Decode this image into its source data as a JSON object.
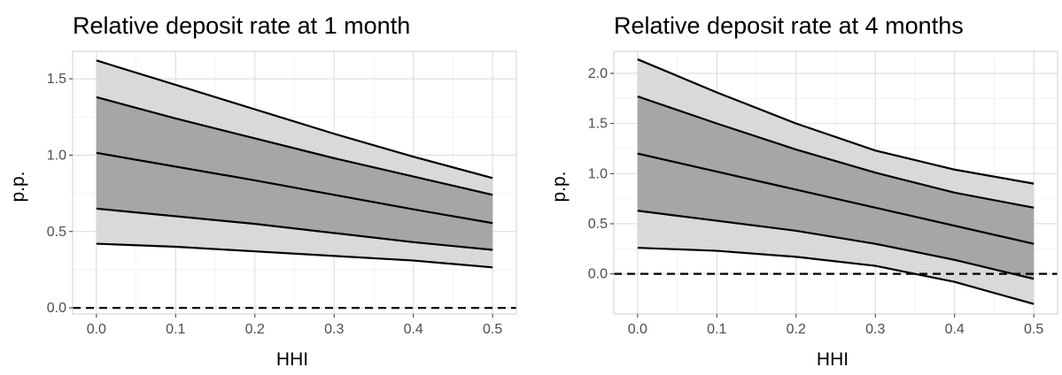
{
  "chart_data": [
    {
      "type": "area",
      "title": "Relative deposit rate at 1 month",
      "xlabel": "HHI",
      "ylabel": "p.p.",
      "x": [
        0.0,
        0.1,
        0.2,
        0.3,
        0.4,
        0.5
      ],
      "xticks": [
        "0.0",
        "0.1",
        "0.2",
        "0.3",
        "0.4",
        "0.5"
      ],
      "yticks": [
        "0.0",
        "0.5",
        "1.0",
        "1.5"
      ],
      "xlim": [
        -0.03,
        0.53
      ],
      "ylim": [
        -0.04,
        1.68
      ],
      "bands": {
        "outer": {
          "fill": "#d9d9d9",
          "lower": [
            0.42,
            0.4,
            0.37,
            0.34,
            0.31,
            0.265
          ],
          "upper": [
            1.62,
            1.46,
            1.3,
            1.14,
            0.99,
            0.85
          ]
        },
        "inner": {
          "fill": "#a6a6a6",
          "lower": [
            0.65,
            0.6,
            0.55,
            0.49,
            0.43,
            0.38
          ],
          "upper": [
            1.38,
            1.24,
            1.11,
            0.98,
            0.86,
            0.74
          ]
        }
      },
      "series": [
        {
          "values": [
            0.42,
            0.4,
            0.37,
            0.34,
            0.31,
            0.265
          ]
        },
        {
          "values": [
            0.65,
            0.6,
            0.55,
            0.49,
            0.43,
            0.38
          ]
        },
        {
          "values": [
            1.015,
            0.925,
            0.835,
            0.74,
            0.645,
            0.555
          ]
        },
        {
          "values": [
            1.38,
            1.24,
            1.11,
            0.98,
            0.86,
            0.74
          ]
        },
        {
          "values": [
            1.62,
            1.46,
            1.3,
            1.14,
            0.99,
            0.85
          ]
        }
      ],
      "reference_line": {
        "y": 0,
        "style": "dashed"
      },
      "grid": true,
      "legend": "none"
    },
    {
      "type": "area",
      "title": "Relative deposit rate at 4 months",
      "xlabel": "HHI",
      "ylabel": "p.p.",
      "x": [
        0.0,
        0.1,
        0.2,
        0.3,
        0.4,
        0.5
      ],
      "xticks": [
        "0.0",
        "0.1",
        "0.2",
        "0.3",
        "0.4",
        "0.5"
      ],
      "yticks": [
        "0.0",
        "0.5",
        "1.0",
        "1.5",
        "2.0"
      ],
      "xlim": [
        -0.03,
        0.53
      ],
      "ylim": [
        -0.4,
        2.22
      ],
      "bands": {
        "outer": {
          "fill": "#d9d9d9",
          "lower": [
            0.26,
            0.23,
            0.17,
            0.08,
            -0.08,
            -0.3
          ],
          "upper": [
            2.14,
            1.81,
            1.5,
            1.23,
            1.04,
            0.9
          ]
        },
        "inner": {
          "fill": "#a6a6a6",
          "lower": [
            0.63,
            0.53,
            0.43,
            0.3,
            0.14,
            -0.05
          ],
          "upper": [
            1.77,
            1.5,
            1.24,
            1.01,
            0.81,
            0.66
          ]
        }
      },
      "series": [
        {
          "values": [
            0.26,
            0.23,
            0.17,
            0.08,
            -0.08,
            -0.3
          ]
        },
        {
          "values": [
            0.63,
            0.53,
            0.43,
            0.3,
            0.14,
            -0.05
          ]
        },
        {
          "values": [
            1.2,
            1.02,
            0.84,
            0.66,
            0.48,
            0.3
          ]
        },
        {
          "values": [
            1.77,
            1.5,
            1.24,
            1.01,
            0.81,
            0.66
          ]
        },
        {
          "values": [
            2.14,
            1.81,
            1.5,
            1.23,
            1.04,
            0.9
          ]
        }
      ],
      "reference_line": {
        "y": 0,
        "style": "dashed"
      },
      "grid": true,
      "legend": "none"
    }
  ]
}
